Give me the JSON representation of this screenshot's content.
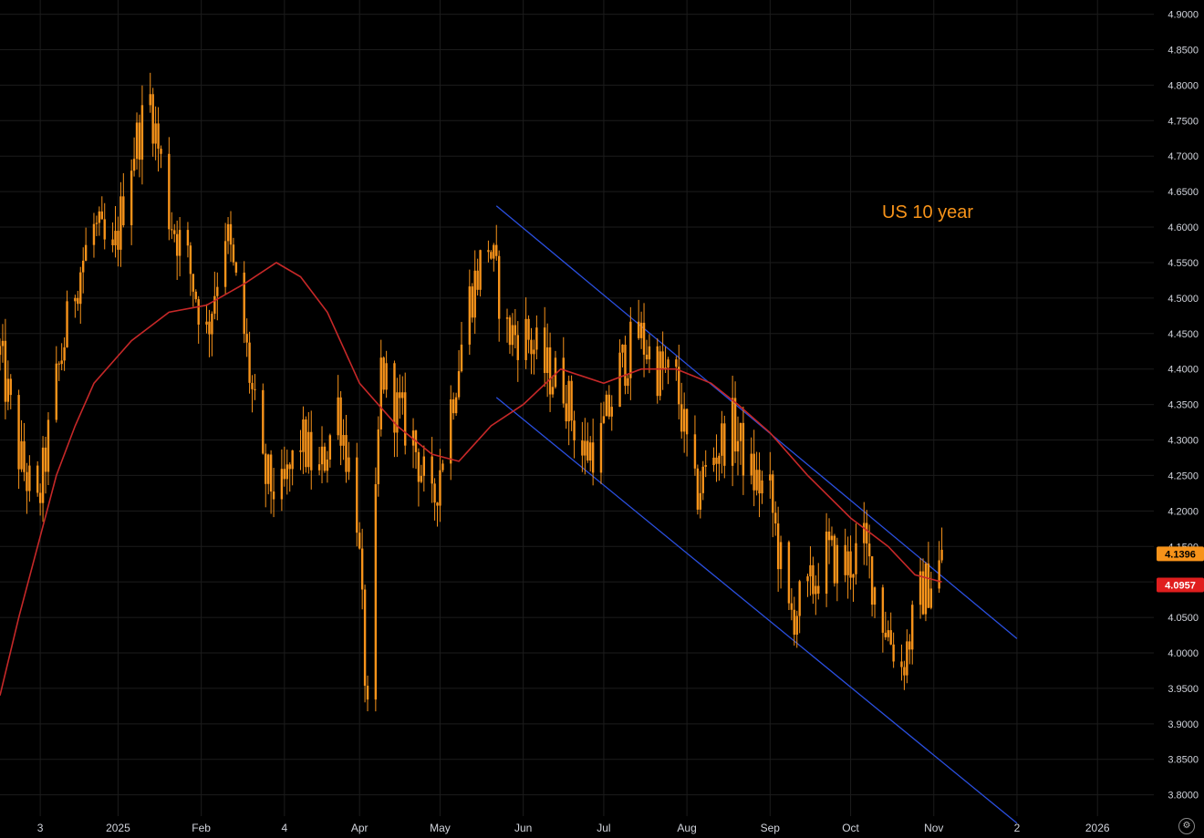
{
  "chart_data": {
    "type": "candlestick",
    "title": "US 10 year",
    "ylim": [
      3.77,
      4.92
    ],
    "y_ticks": [
      "4.9000",
      "4.8500",
      "4.8000",
      "4.7500",
      "4.7000",
      "4.6500",
      "4.6000",
      "4.5500",
      "4.5000",
      "4.4500",
      "4.4000",
      "4.3500",
      "4.3000",
      "4.2500",
      "4.2000",
      "4.1500",
      "4.1000",
      "4.0500",
      "4.0000",
      "3.9500",
      "3.9000",
      "3.8500",
      "3.8000"
    ],
    "x_range": [
      "2024-11-18",
      "2026-01-22"
    ],
    "x_ticks": [
      {
        "label": "3",
        "date": "2024-12-03"
      },
      {
        "label": "2025",
        "date": "2025-01-01"
      },
      {
        "label": "Feb",
        "date": "2025-02-01"
      },
      {
        "label": "4",
        "date": "2025-03-04"
      },
      {
        "label": "Apr",
        "date": "2025-04-01"
      },
      {
        "label": "May",
        "date": "2025-05-01"
      },
      {
        "label": "Jun",
        "date": "2025-06-01"
      },
      {
        "label": "Jul",
        "date": "2025-07-01"
      },
      {
        "label": "Aug",
        "date": "2025-08-01"
      },
      {
        "label": "Sep",
        "date": "2025-09-01"
      },
      {
        "label": "Oct",
        "date": "2025-10-01"
      },
      {
        "label": "Nov",
        "date": "2025-11-01"
      },
      {
        "label": "2",
        "date": "2025-12-02"
      },
      {
        "label": "2026",
        "date": "2026-01-01"
      }
    ],
    "price_badges": [
      {
        "value": "4.1396",
        "color": "#f7931a",
        "text_color": "#000000"
      },
      {
        "value": "4.0957",
        "color": "#e01e1e",
        "text_color": "#ffffff"
      }
    ],
    "close_series": {
      "name": "",
      "color": "#f7931a",
      "points": [
        [
          "2024-11-18",
          4.42
        ],
        [
          "2024-11-25",
          4.28
        ],
        [
          "2024-12-02",
          4.2
        ],
        [
          "2024-12-09",
          4.38
        ],
        [
          "2024-12-16",
          4.52
        ],
        [
          "2024-12-23",
          4.6
        ],
        [
          "2024-12-30",
          4.55
        ],
        [
          "2025-01-06",
          4.7
        ],
        [
          "2025-01-13",
          4.78
        ],
        [
          "2025-01-20",
          4.62
        ],
        [
          "2025-01-27",
          4.55
        ],
        [
          "2025-02-03",
          4.45
        ],
        [
          "2025-02-10",
          4.6
        ],
        [
          "2025-02-17",
          4.45
        ],
        [
          "2025-02-24",
          4.25
        ],
        [
          "2025-03-03",
          4.22
        ],
        [
          "2025-03-10",
          4.3
        ],
        [
          "2025-03-17",
          4.25
        ],
        [
          "2025-03-24",
          4.35
        ],
        [
          "2025-03-31",
          4.2
        ],
        [
          "2025-04-04",
          3.9
        ],
        [
          "2025-04-09",
          4.4
        ],
        [
          "2025-04-14",
          4.35
        ],
        [
          "2025-04-21",
          4.3
        ],
        [
          "2025-04-28",
          4.2
        ],
        [
          "2025-05-05",
          4.35
        ],
        [
          "2025-05-12",
          4.5
        ],
        [
          "2025-05-19",
          4.58
        ],
        [
          "2025-05-26",
          4.45
        ],
        [
          "2025-06-02",
          4.45
        ],
        [
          "2025-06-09",
          4.4
        ],
        [
          "2025-06-16",
          4.38
        ],
        [
          "2025-06-23",
          4.28
        ],
        [
          "2025-06-30",
          4.3
        ],
        [
          "2025-07-07",
          4.4
        ],
        [
          "2025-07-14",
          4.45
        ],
        [
          "2025-07-21",
          4.4
        ],
        [
          "2025-07-28",
          4.38
        ],
        [
          "2025-08-04",
          4.22
        ],
        [
          "2025-08-11",
          4.28
        ],
        [
          "2025-08-18",
          4.32
        ],
        [
          "2025-08-25",
          4.25
        ],
        [
          "2025-09-01",
          4.22
        ],
        [
          "2025-09-08",
          4.05
        ],
        [
          "2025-09-15",
          4.08
        ],
        [
          "2025-09-22",
          4.14
        ],
        [
          "2025-09-29",
          4.12
        ],
        [
          "2025-10-06",
          4.15
        ],
        [
          "2025-10-13",
          4.05
        ],
        [
          "2025-10-20",
          3.98
        ],
        [
          "2025-10-27",
          4.08
        ],
        [
          "2025-11-04",
          4.13
        ]
      ]
    },
    "moving_average": {
      "name": "",
      "color": "#c62828",
      "points": [
        [
          "2024-11-18",
          3.94
        ],
        [
          "2024-11-25",
          4.05
        ],
        [
          "2024-12-02",
          4.15
        ],
        [
          "2024-12-09",
          4.25
        ],
        [
          "2024-12-16",
          4.32
        ],
        [
          "2024-12-23",
          4.38
        ],
        [
          "2025-01-06",
          4.44
        ],
        [
          "2025-01-20",
          4.48
        ],
        [
          "2025-02-03",
          4.49
        ],
        [
          "2025-02-17",
          4.52
        ],
        [
          "2025-03-01",
          4.55
        ],
        [
          "2025-03-10",
          4.53
        ],
        [
          "2025-03-20",
          4.48
        ],
        [
          "2025-04-01",
          4.38
        ],
        [
          "2025-04-15",
          4.32
        ],
        [
          "2025-04-28",
          4.28
        ],
        [
          "2025-05-08",
          4.27
        ],
        [
          "2025-05-20",
          4.32
        ],
        [
          "2025-06-01",
          4.35
        ],
        [
          "2025-06-15",
          4.4
        ],
        [
          "2025-07-01",
          4.38
        ],
        [
          "2025-07-15",
          4.4
        ],
        [
          "2025-07-28",
          4.4
        ],
        [
          "2025-08-10",
          4.38
        ],
        [
          "2025-08-20",
          4.35
        ],
        [
          "2025-09-01",
          4.31
        ],
        [
          "2025-09-15",
          4.25
        ],
        [
          "2025-10-01",
          4.19
        ],
        [
          "2025-10-15",
          4.15
        ],
        [
          "2025-10-25",
          4.11
        ],
        [
          "2025-11-04",
          4.1
        ]
      ]
    },
    "trend_lines": [
      {
        "color": "#2a4fdf",
        "from": [
          "2025-05-22",
          4.63
        ],
        "to": [
          "2025-12-02",
          4.02
        ]
      },
      {
        "color": "#2a4fdf",
        "from": [
          "2025-05-22",
          4.36
        ],
        "to": [
          "2025-12-02",
          3.76
        ]
      }
    ],
    "grid": true,
    "legend": "none"
  }
}
